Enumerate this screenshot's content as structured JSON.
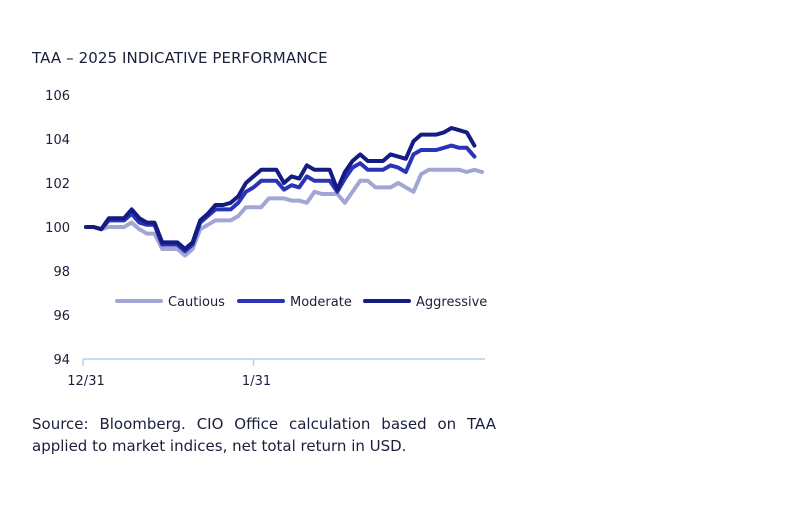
{
  "title": "TAA – 2025 INDICATIVE PERFORMANCE",
  "source": "Source: Bloomberg. CIO Office calculation based on TAA applied to market indices, net total return in USD.",
  "chart_data": {
    "type": "line",
    "title": "TAA – 2025 INDICATIVE PERFORMANCE",
    "xlabel": "",
    "ylabel": "",
    "ylim": [
      94,
      106
    ],
    "yticks": [
      94,
      96,
      98,
      100,
      102,
      104,
      106
    ],
    "xtick_labels": [
      {
        "index": 0,
        "label": "12/31"
      },
      {
        "index": 22,
        "label": "1/31"
      }
    ],
    "grid": false,
    "legend": "center-inside",
    "series": [
      {
        "name": "Cautious",
        "color": "#a3a6d4",
        "values": [
          100.0,
          100.0,
          99.9,
          100.0,
          100.0,
          100.0,
          100.2,
          99.9,
          99.7,
          99.7,
          99.0,
          99.0,
          99.0,
          98.7,
          99.0,
          99.9,
          100.1,
          100.3,
          100.3,
          100.3,
          100.5,
          100.9,
          100.9,
          100.9,
          101.3,
          101.3,
          101.3,
          101.2,
          101.2,
          101.1,
          101.6,
          101.5,
          101.5,
          101.5,
          101.1,
          101.6,
          102.1,
          102.1,
          101.8,
          101.8,
          101.8,
          102.0,
          101.8,
          101.6,
          102.4,
          102.6,
          102.6,
          102.6,
          102.6,
          102.6,
          102.5,
          102.6,
          102.5
        ]
      },
      {
        "name": "Moderate",
        "color": "#2a34b8",
        "values": [
          100.0,
          100.0,
          99.9,
          100.3,
          100.3,
          100.3,
          100.6,
          100.2,
          100.1,
          100.1,
          99.2,
          99.2,
          99.2,
          98.9,
          99.2,
          100.2,
          100.5,
          100.8,
          100.8,
          100.8,
          101.1,
          101.6,
          101.8,
          102.1,
          102.1,
          102.1,
          101.7,
          101.9,
          101.8,
          102.3,
          102.1,
          102.1,
          102.1,
          101.6,
          102.2,
          102.7,
          102.9,
          102.6,
          102.6,
          102.6,
          102.8,
          102.7,
          102.5,
          103.3,
          103.5,
          103.5,
          103.5,
          103.6,
          103.7,
          103.6,
          103.6,
          103.2
        ]
      },
      {
        "name": "Aggressive",
        "color": "#141c82",
        "values": [
          100.0,
          100.0,
          99.9,
          100.4,
          100.4,
          100.4,
          100.8,
          100.4,
          100.2,
          100.2,
          99.3,
          99.3,
          99.3,
          99.0,
          99.3,
          100.3,
          100.6,
          101.0,
          101.0,
          101.1,
          101.4,
          102.0,
          102.3,
          102.6,
          102.6,
          102.6,
          102.0,
          102.3,
          102.2,
          102.8,
          102.6,
          102.6,
          102.6,
          101.7,
          102.5,
          103.0,
          103.3,
          103.0,
          103.0,
          103.0,
          103.3,
          103.2,
          103.1,
          103.9,
          104.2,
          104.2,
          104.2,
          104.3,
          104.5,
          104.4,
          104.3,
          103.7
        ]
      }
    ]
  }
}
